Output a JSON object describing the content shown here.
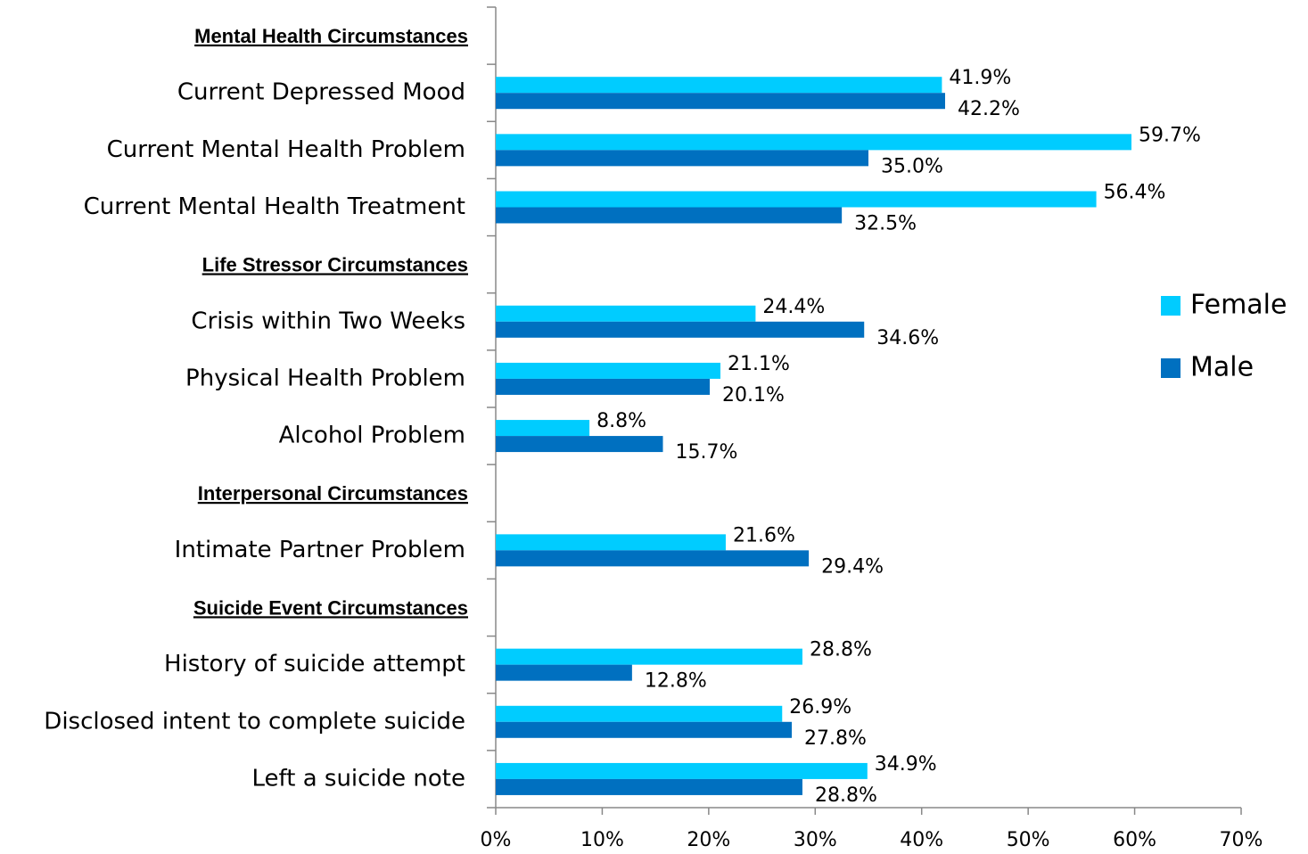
{
  "chart_data": {
    "type": "hbar",
    "categories": [
      "Mental Health Circumstances",
      "Current Depressed Mood",
      "Current Mental Health Problem",
      "Current Mental Health Treatment",
      "Life Stressor Circumstances",
      "Crisis within Two Weeks",
      "Physical Health Problem",
      "Alcohol Problem",
      "Interpersonal Circumstances",
      "Intimate Partner Problem",
      "Suicide Event Circumstances",
      "History of suicide attempt",
      "Disclosed intent to complete suicide",
      "Left a suicide note"
    ],
    "series": [
      {
        "name": "Female",
        "color": "#00ccff",
        "values": [
          null,
          41.9,
          59.7,
          56.4,
          null,
          24.4,
          21.1,
          8.8,
          null,
          21.6,
          null,
          28.8,
          26.9,
          34.9
        ],
        "value_labels": [
          null,
          "41.9%",
          "59.7%",
          "56.4%",
          null,
          "24.4%",
          "21.1%",
          "8.8%",
          null,
          "21.6%",
          null,
          "28.8%",
          "26.9%",
          "34.9%"
        ]
      },
      {
        "name": "Male",
        "color": "#0070c0",
        "values": [
          null,
          42.2,
          35.0,
          32.5,
          null,
          34.6,
          20.1,
          15.7,
          null,
          29.4,
          null,
          12.8,
          27.8,
          28.8
        ],
        "value_labels": [
          null,
          "42.2%",
          "35.0%",
          "32.5%",
          null,
          "34.6%",
          "20.1%",
          "15.7%",
          null,
          "29.4%",
          null,
          "12.8%",
          "27.8%",
          "28.8%"
        ]
      }
    ],
    "xlim": [
      0,
      70
    ],
    "xticks": [
      {
        "value": 0,
        "label": "0%"
      },
      {
        "value": 10,
        "label": "10%"
      },
      {
        "value": 20,
        "label": "20%"
      },
      {
        "value": 30,
        "label": "30%"
      },
      {
        "value": 40,
        "label": "40%"
      },
      {
        "value": 50,
        "label": "50%"
      },
      {
        "value": 60,
        "label": "60%"
      },
      {
        "value": 70,
        "label": "70%"
      }
    ],
    "legend": "right"
  }
}
